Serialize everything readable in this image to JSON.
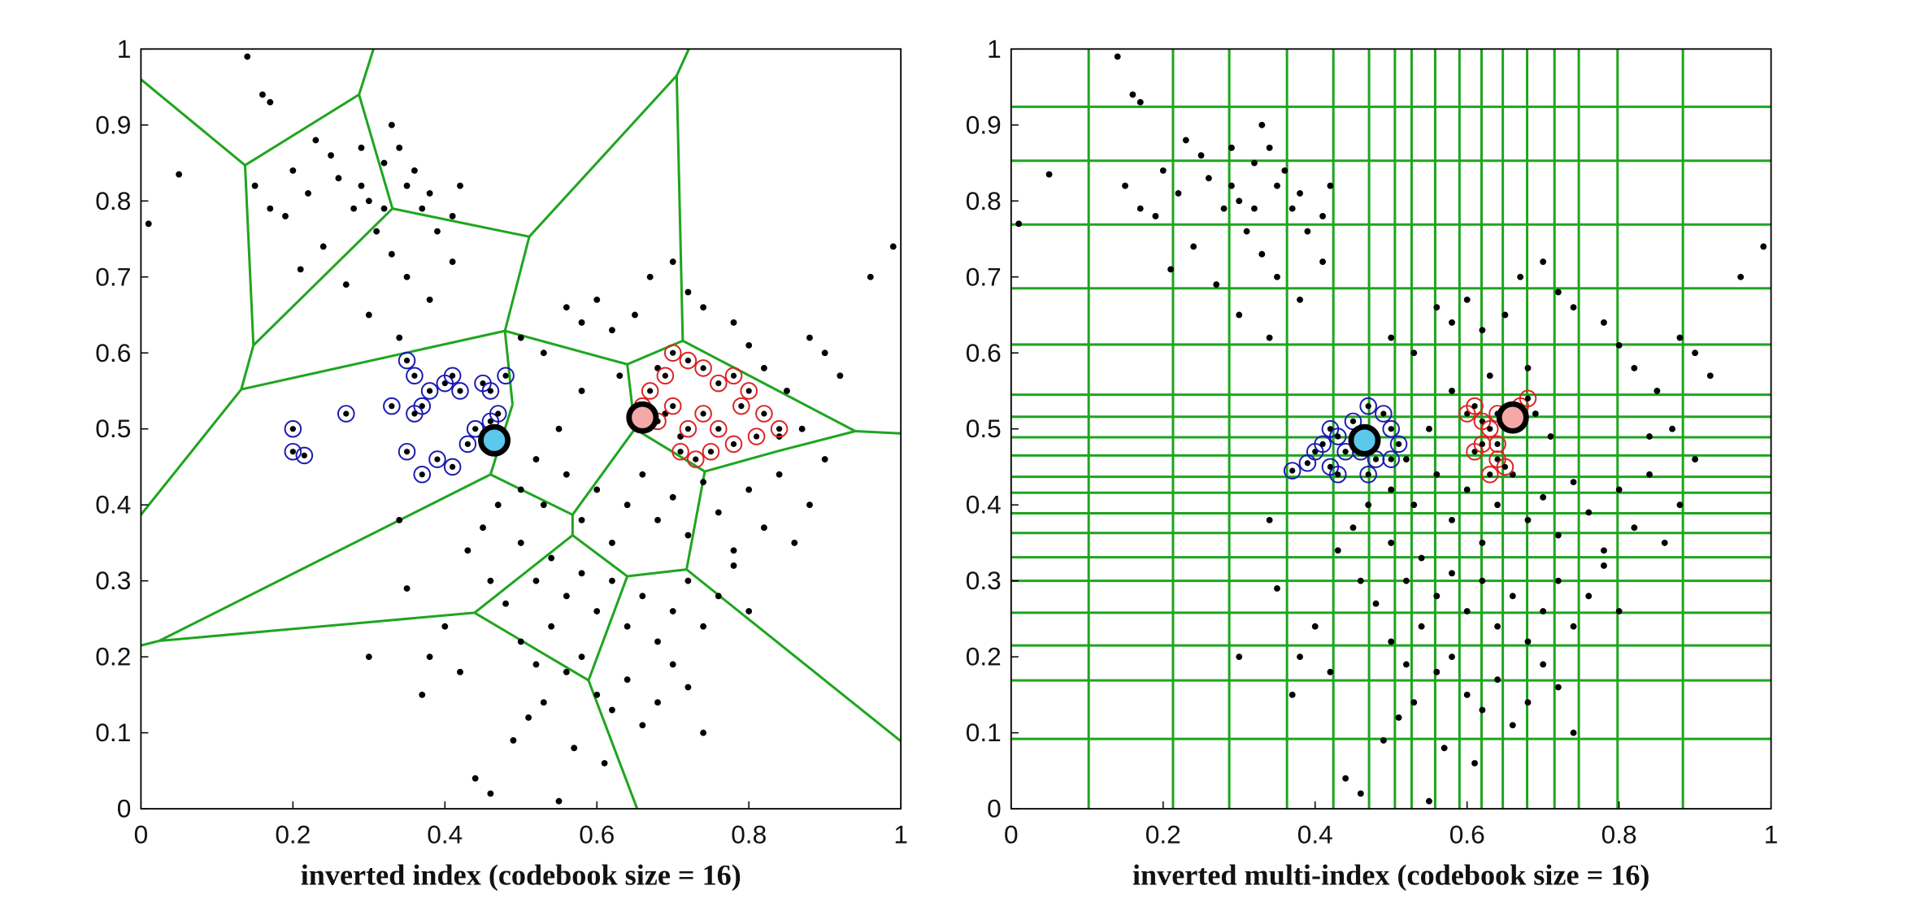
{
  "chart_data": [
    {
      "type": "scatter",
      "xlabel": "inverted index (codebook size = 16)",
      "xlim": [
        0,
        1
      ],
      "ylim": [
        0,
        1
      ],
      "xticks": [
        0,
        0.2,
        0.4,
        0.6,
        0.8,
        1
      ],
      "yticks": [
        0,
        0.1,
        0.2,
        0.3,
        0.4,
        0.5,
        0.6,
        0.7,
        0.8,
        0.9,
        1
      ],
      "partition_color": "#1fa51f",
      "partition": [
        [
          0,
          0.96,
          0.137,
          0.847
        ],
        [
          0.137,
          0.847,
          0.287,
          0.94
        ],
        [
          0.287,
          0.94,
          0.306,
          1
        ],
        [
          0.287,
          0.94,
          0.331,
          0.79
        ],
        [
          0.137,
          0.847,
          0.148,
          0.61
        ],
        [
          0.331,
          0.79,
          0.148,
          0.61
        ],
        [
          0.331,
          0.79,
          0.511,
          0.753
        ],
        [
          0.511,
          0.753,
          0.705,
          0.965
        ],
        [
          0.705,
          0.965,
          0.721,
          1
        ],
        [
          0.511,
          0.753,
          0.479,
          0.629
        ],
        [
          0.148,
          0.61,
          0.132,
          0.552
        ],
        [
          0.132,
          0.552,
          0.479,
          0.629
        ],
        [
          0.132,
          0.552,
          0,
          0.387
        ],
        [
          0.479,
          0.629,
          0.64,
          0.585
        ],
        [
          0.705,
          0.965,
          0.713,
          0.616
        ],
        [
          0.713,
          0.616,
          0.64,
          0.585
        ],
        [
          0.713,
          0.616,
          0.94,
          0.497
        ],
        [
          0.94,
          0.497,
          1,
          0.494
        ],
        [
          0.94,
          0.497,
          0.839,
          0.471
        ],
        [
          0.839,
          0.471,
          0.742,
          0.444
        ],
        [
          0.64,
          0.585,
          0.65,
          0.5
        ],
        [
          0.65,
          0.5,
          0.568,
          0.387
        ],
        [
          0.479,
          0.629,
          0.489,
          0.532
        ],
        [
          0.489,
          0.532,
          0.46,
          0.44
        ],
        [
          0.46,
          0.44,
          0.568,
          0.387
        ],
        [
          0.46,
          0.44,
          0.024,
          0.221
        ],
        [
          0.024,
          0.221,
          0,
          0.215
        ],
        [
          0.568,
          0.387,
          0.568,
          0.36
        ],
        [
          0.568,
          0.36,
          0.439,
          0.258
        ],
        [
          0.439,
          0.258,
          0.024,
          0.221
        ],
        [
          0.439,
          0.258,
          0.589,
          0.169
        ],
        [
          0.589,
          0.169,
          0.653,
          0
        ],
        [
          0.589,
          0.169,
          0.64,
          0.306
        ],
        [
          0.568,
          0.36,
          0.64,
          0.306
        ],
        [
          0.64,
          0.306,
          0.718,
          0.315
        ],
        [
          0.718,
          0.315,
          1,
          0.089
        ],
        [
          0.718,
          0.315,
          0.742,
          0.444
        ],
        [
          0.65,
          0.5,
          0.742,
          0.444
        ]
      ],
      "points": {
        "color": "#000000",
        "x": [
          0.16,
          0.17,
          0.15,
          0.17,
          0.2,
          0.22,
          0.23,
          0.25,
          0.26,
          0.28,
          0.29,
          0.3,
          0.31,
          0.32,
          0.33,
          0.34,
          0.35,
          0.36,
          0.37,
          0.38,
          0.39,
          0.41,
          0.42,
          0.24,
          0.21,
          0.27,
          0.35,
          0.38,
          0.33,
          0.3,
          0.34,
          0.41,
          0.19,
          0.29,
          0.32,
          0.5,
          0.53,
          0.56,
          0.58,
          0.6,
          0.62,
          0.65,
          0.67,
          0.7,
          0.72,
          0.74,
          0.78,
          0.8,
          0.82,
          0.85,
          0.88,
          0.9,
          0.92,
          0.68,
          0.63,
          0.58,
          0.55,
          0.52,
          0.5,
          0.53,
          0.56,
          0.58,
          0.6,
          0.62,
          0.64,
          0.66,
          0.68,
          0.7,
          0.72,
          0.74,
          0.76,
          0.78,
          0.8,
          0.82,
          0.84,
          0.86,
          0.88,
          0.9,
          0.87,
          0.84,
          0.5,
          0.52,
          0.54,
          0.56,
          0.58,
          0.6,
          0.62,
          0.64,
          0.66,
          0.68,
          0.7,
          0.72,
          0.74,
          0.76,
          0.78,
          0.8,
          0.46,
          0.48,
          0.5,
          0.52,
          0.54,
          0.56,
          0.58,
          0.6,
          0.62,
          0.64,
          0.66,
          0.68,
          0.7,
          0.72,
          0.74,
          0.45,
          0.47,
          0.43,
          0.4,
          0.38,
          0.37,
          0.42,
          0.49,
          0.51,
          0.53,
          0.57,
          0.61,
          0.69,
          0.71,
          0.96,
          0.01,
          0.05,
          0.14,
          0.99,
          0.3,
          0.44,
          0.55,
          0.46,
          0.34,
          0.35
        ],
        "y": [
          0.94,
          0.93,
          0.82,
          0.79,
          0.84,
          0.81,
          0.88,
          0.86,
          0.83,
          0.79,
          0.82,
          0.8,
          0.76,
          0.85,
          0.9,
          0.87,
          0.82,
          0.84,
          0.79,
          0.81,
          0.76,
          0.78,
          0.82,
          0.74,
          0.71,
          0.69,
          0.7,
          0.67,
          0.73,
          0.65,
          0.62,
          0.72,
          0.78,
          0.87,
          0.79,
          0.62,
          0.6,
          0.66,
          0.64,
          0.67,
          0.63,
          0.65,
          0.7,
          0.72,
          0.68,
          0.66,
          0.64,
          0.61,
          0.58,
          0.55,
          0.62,
          0.6,
          0.57,
          0.58,
          0.57,
          0.55,
          0.5,
          0.46,
          0.42,
          0.4,
          0.44,
          0.38,
          0.42,
          0.35,
          0.4,
          0.44,
          0.38,
          0.41,
          0.36,
          0.43,
          0.39,
          0.34,
          0.42,
          0.37,
          0.44,
          0.35,
          0.4,
          0.46,
          0.5,
          0.49,
          0.35,
          0.3,
          0.33,
          0.28,
          0.31,
          0.26,
          0.3,
          0.24,
          0.28,
          0.22,
          0.26,
          0.3,
          0.24,
          0.28,
          0.32,
          0.26,
          0.3,
          0.27,
          0.22,
          0.19,
          0.24,
          0.18,
          0.2,
          0.15,
          0.13,
          0.17,
          0.11,
          0.14,
          0.19,
          0.16,
          0.1,
          0.37,
          0.4,
          0.34,
          0.24,
          0.2,
          0.15,
          0.18,
          0.09,
          0.12,
          0.14,
          0.08,
          0.06,
          0.52,
          0.49,
          0.7,
          0.77,
          0.835,
          0.99,
          0.74,
          0.2,
          0.04,
          0.01,
          0.02,
          0.38,
          0.29
        ]
      },
      "neighbors": [
        {
          "color": "#1a1ab0",
          "x": [
            0.2,
            0.2,
            0.215,
            0.27,
            0.33,
            0.35,
            0.36,
            0.37,
            0.38,
            0.4,
            0.41,
            0.42,
            0.45,
            0.46,
            0.48,
            0.35,
            0.37,
            0.39,
            0.41,
            0.43,
            0.44,
            0.46,
            0.47,
            0.36
          ],
          "y": [
            0.5,
            0.47,
            0.465,
            0.52,
            0.53,
            0.59,
            0.57,
            0.53,
            0.55,
            0.56,
            0.57,
            0.55,
            0.56,
            0.55,
            0.57,
            0.47,
            0.44,
            0.46,
            0.45,
            0.48,
            0.5,
            0.51,
            0.52,
            0.52
          ]
        },
        {
          "color": "#dd2222",
          "x": [
            0.67,
            0.69,
            0.7,
            0.72,
            0.74,
            0.76,
            0.78,
            0.8,
            0.82,
            0.84,
            0.7,
            0.72,
            0.74,
            0.76,
            0.78,
            0.71,
            0.73,
            0.75,
            0.68,
            0.66,
            0.79,
            0.81
          ],
          "y": [
            0.55,
            0.57,
            0.6,
            0.59,
            0.58,
            0.56,
            0.57,
            0.55,
            0.52,
            0.5,
            0.53,
            0.5,
            0.52,
            0.5,
            0.48,
            0.47,
            0.46,
            0.47,
            0.51,
            0.53,
            0.53,
            0.49
          ]
        }
      ],
      "queries": [
        {
          "x": 0.465,
          "y": 0.485,
          "color": "#5bc8ec"
        },
        {
          "x": 0.66,
          "y": 0.515,
          "color": "#f4a9a8"
        }
      ]
    },
    {
      "type": "scatter",
      "xlabel": "inverted multi-index (codebook size = 16)",
      "xlim": [
        0,
        1
      ],
      "ylim": [
        0,
        1
      ],
      "xticks": [
        0,
        0.2,
        0.4,
        0.6,
        0.8,
        1
      ],
      "yticks": [
        0,
        0.1,
        0.2,
        0.3,
        0.4,
        0.5,
        0.6,
        0.7,
        0.8,
        0.9,
        1
      ],
      "partition_color": "#1fa51f",
      "grid_x": [
        0.102,
        0.213,
        0.287,
        0.363,
        0.424,
        0.471,
        0.505,
        0.527,
        0.558,
        0.59,
        0.619,
        0.647,
        0.679,
        0.715,
        0.747,
        0.798,
        0.884
      ],
      "grid_y": [
        0.924,
        0.853,
        0.769,
        0.685,
        0.611,
        0.545,
        0.516,
        0.489,
        0.465,
        0.437,
        0.416,
        0.389,
        0.363,
        0.331,
        0.3,
        0.258,
        0.215,
        0.169,
        0.092
      ],
      "points": {
        "color": "#000000",
        "x": [
          0.16,
          0.17,
          0.15,
          0.17,
          0.2,
          0.22,
          0.23,
          0.25,
          0.26,
          0.28,
          0.29,
          0.3,
          0.31,
          0.32,
          0.33,
          0.34,
          0.35,
          0.36,
          0.37,
          0.38,
          0.39,
          0.41,
          0.42,
          0.24,
          0.21,
          0.27,
          0.35,
          0.38,
          0.33,
          0.3,
          0.34,
          0.41,
          0.19,
          0.29,
          0.32,
          0.5,
          0.53,
          0.56,
          0.58,
          0.6,
          0.62,
          0.65,
          0.67,
          0.7,
          0.72,
          0.74,
          0.78,
          0.8,
          0.82,
          0.85,
          0.88,
          0.9,
          0.92,
          0.68,
          0.63,
          0.58,
          0.55,
          0.52,
          0.5,
          0.53,
          0.56,
          0.58,
          0.6,
          0.62,
          0.64,
          0.66,
          0.68,
          0.7,
          0.72,
          0.74,
          0.76,
          0.78,
          0.8,
          0.82,
          0.84,
          0.86,
          0.88,
          0.9,
          0.87,
          0.84,
          0.5,
          0.52,
          0.54,
          0.56,
          0.58,
          0.6,
          0.62,
          0.64,
          0.66,
          0.68,
          0.7,
          0.72,
          0.74,
          0.76,
          0.78,
          0.8,
          0.46,
          0.48,
          0.5,
          0.52,
          0.54,
          0.56,
          0.58,
          0.6,
          0.62,
          0.64,
          0.66,
          0.68,
          0.7,
          0.72,
          0.74,
          0.45,
          0.47,
          0.43,
          0.4,
          0.38,
          0.37,
          0.42,
          0.49,
          0.51,
          0.53,
          0.57,
          0.61,
          0.69,
          0.71,
          0.96,
          0.01,
          0.05,
          0.14,
          0.99,
          0.3,
          0.44,
          0.55,
          0.46,
          0.34,
          0.35
        ],
        "y": [
          0.94,
          0.93,
          0.82,
          0.79,
          0.84,
          0.81,
          0.88,
          0.86,
          0.83,
          0.79,
          0.82,
          0.8,
          0.76,
          0.85,
          0.9,
          0.87,
          0.82,
          0.84,
          0.79,
          0.81,
          0.76,
          0.78,
          0.82,
          0.74,
          0.71,
          0.69,
          0.7,
          0.67,
          0.73,
          0.65,
          0.62,
          0.72,
          0.78,
          0.87,
          0.79,
          0.62,
          0.6,
          0.66,
          0.64,
          0.67,
          0.63,
          0.65,
          0.7,
          0.72,
          0.68,
          0.66,
          0.64,
          0.61,
          0.58,
          0.55,
          0.62,
          0.6,
          0.57,
          0.58,
          0.57,
          0.55,
          0.5,
          0.46,
          0.42,
          0.4,
          0.44,
          0.38,
          0.42,
          0.35,
          0.4,
          0.44,
          0.38,
          0.41,
          0.36,
          0.43,
          0.39,
          0.34,
          0.42,
          0.37,
          0.44,
          0.35,
          0.4,
          0.46,
          0.5,
          0.49,
          0.35,
          0.3,
          0.33,
          0.28,
          0.31,
          0.26,
          0.3,
          0.24,
          0.28,
          0.22,
          0.26,
          0.3,
          0.24,
          0.28,
          0.32,
          0.26,
          0.3,
          0.27,
          0.22,
          0.19,
          0.24,
          0.18,
          0.2,
          0.15,
          0.13,
          0.17,
          0.11,
          0.14,
          0.19,
          0.16,
          0.1,
          0.37,
          0.4,
          0.34,
          0.24,
          0.2,
          0.15,
          0.18,
          0.09,
          0.12,
          0.14,
          0.08,
          0.06,
          0.52,
          0.49,
          0.7,
          0.77,
          0.835,
          0.99,
          0.74,
          0.2,
          0.04,
          0.01,
          0.02,
          0.38,
          0.29
        ]
      },
      "neighbors": [
        {
          "color": "#1a1ab0",
          "x": [
            0.37,
            0.39,
            0.4,
            0.41,
            0.42,
            0.43,
            0.45,
            0.47,
            0.49,
            0.5,
            0.51,
            0.5,
            0.48,
            0.46,
            0.42,
            0.47,
            0.43,
            0.44
          ],
          "y": [
            0.445,
            0.455,
            0.47,
            0.48,
            0.5,
            0.49,
            0.51,
            0.53,
            0.52,
            0.5,
            0.48,
            0.46,
            0.46,
            0.47,
            0.45,
            0.44,
            0.44,
            0.47
          ]
        },
        {
          "color": "#dd2222",
          "x": [
            0.6,
            0.61,
            0.62,
            0.63,
            0.64,
            0.64,
            0.65,
            0.63,
            0.61,
            0.62,
            0.66,
            0.67,
            0.68,
            0.64
          ],
          "y": [
            0.52,
            0.53,
            0.51,
            0.5,
            0.48,
            0.46,
            0.45,
            0.44,
            0.47,
            0.48,
            0.52,
            0.53,
            0.54,
            0.52
          ]
        }
      ],
      "queries": [
        {
          "x": 0.465,
          "y": 0.485,
          "color": "#5bc8ec"
        },
        {
          "x": 0.66,
          "y": 0.515,
          "color": "#f4a9a8"
        }
      ]
    }
  ]
}
